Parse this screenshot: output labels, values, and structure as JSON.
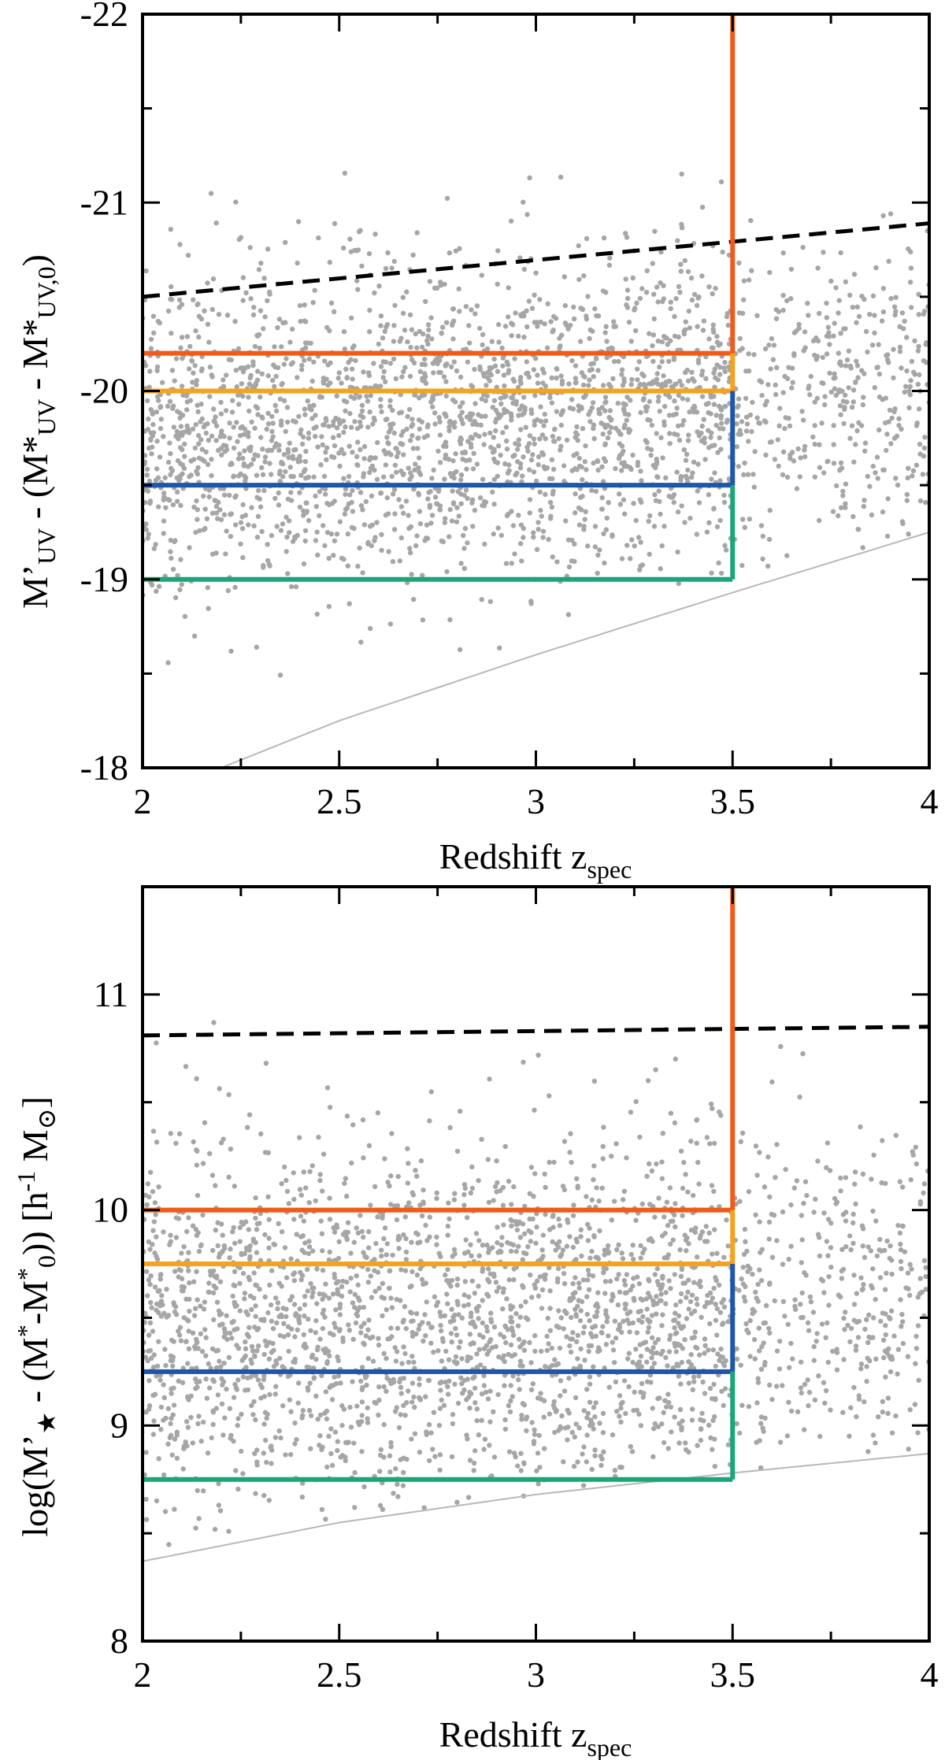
{
  "chart_data": [
    {
      "type": "scatter",
      "panel": "top",
      "xlabel_main": "Redshift z",
      "xlabel_sub": "spec",
      "ylabel_parts": [
        "M’",
        "UV",
        " - (M*",
        "UV",
        " - M*",
        "UV,0",
        ")"
      ],
      "xlim": [
        2,
        4
      ],
      "ylim": [
        -18,
        -22
      ],
      "x_ticks": [
        "2",
        "2.5",
        "3",
        "3.5",
        "4"
      ],
      "x_tick_values": [
        2,
        2.5,
        3,
        3.5,
        4
      ],
      "y_ticks": [
        "-18",
        "-19",
        "-20",
        "-21",
        "-22"
      ],
      "y_tick_values": [
        -18,
        -19,
        -20,
        -21,
        -22
      ],
      "threshold_lines": [
        {
          "name": "orange-red",
          "color": "#f05a1a",
          "y": -20.2,
          "z_max": 3.5
        },
        {
          "name": "orange",
          "color": "#f5a21c",
          "y": -20.0,
          "z_max": 3.5
        },
        {
          "name": "blue",
          "color": "#1f56a8",
          "y": -19.5,
          "z_max": 3.5
        },
        {
          "name": "green",
          "color": "#1aa57a",
          "y": -19.0,
          "z_max": 3.5
        }
      ],
      "redshift_cut": 3.5,
      "dashed_line": {
        "color": "#000000",
        "x": [
          2,
          4
        ],
        "y": [
          -20.5,
          -20.89
        ]
      },
      "limit_curve": {
        "color": "#b8b8b8",
        "x": [
          2.2,
          2.5,
          3.0,
          3.5,
          4.0
        ],
        "y": [
          -18.0,
          -18.25,
          -18.6,
          -18.93,
          -19.25
        ]
      },
      "scatter": {
        "color": "#a6a6a6",
        "seed": 11,
        "count": 2600
      }
    },
    {
      "type": "scatter",
      "panel": "bottom",
      "xlabel_main": "Redshift z",
      "xlabel_sub": "spec",
      "ylabel_parts": [
        "log(M’",
        "★",
        " - (M",
        "*",
        "-M",
        "*",
        "0",
        ")) [h",
        "-1",
        " M",
        "⊙",
        "]"
      ],
      "xlim": [
        2,
        4
      ],
      "ylim": [
        8,
        11.5
      ],
      "x_ticks": [
        "2",
        "2.5",
        "3",
        "3.5",
        "4"
      ],
      "x_tick_values": [
        2,
        2.5,
        3,
        3.5,
        4
      ],
      "y_ticks": [
        "8",
        "9",
        "10",
        "11"
      ],
      "y_tick_values": [
        8,
        9,
        10,
        11
      ],
      "threshold_lines": [
        {
          "name": "orange-red",
          "color": "#f05a1a",
          "y": 10.0,
          "z_max": 3.5
        },
        {
          "name": "orange",
          "color": "#f5a21c",
          "y": 9.75,
          "z_max": 3.5
        },
        {
          "name": "blue",
          "color": "#1f56a8",
          "y": 9.25,
          "z_max": 3.5
        },
        {
          "name": "green",
          "color": "#1aa57a",
          "y": 8.75,
          "z_max": 3.5
        }
      ],
      "redshift_cut": 3.5,
      "dashed_line": {
        "color": "#000000",
        "x": [
          2,
          4
        ],
        "y": [
          10.81,
          10.85
        ]
      },
      "limit_curve": {
        "color": "#b8b8b8",
        "x": [
          2.0,
          2.5,
          3.0,
          3.5,
          4.0
        ],
        "y": [
          8.37,
          8.55,
          8.68,
          8.78,
          8.87
        ]
      },
      "scatter": {
        "color": "#a6a6a6",
        "seed": 29,
        "count": 2600
      }
    }
  ]
}
